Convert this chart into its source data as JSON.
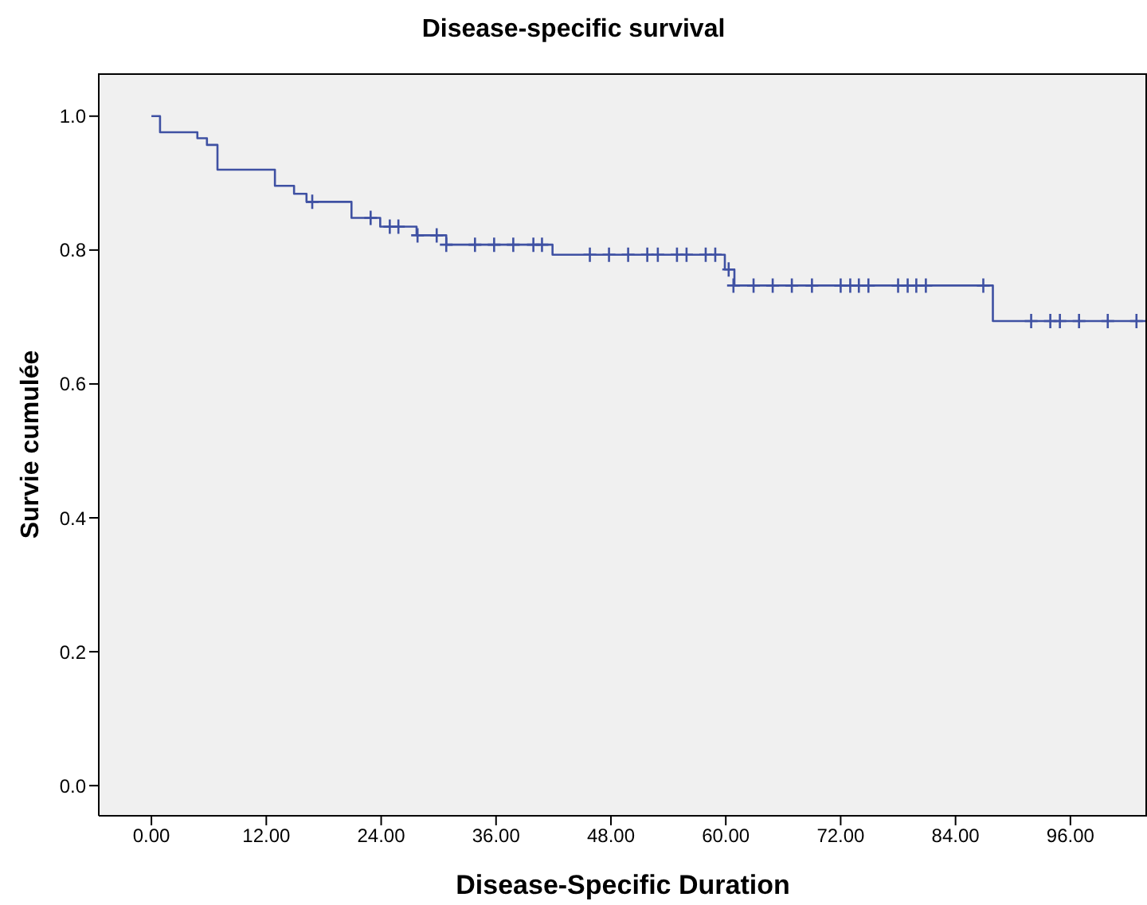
{
  "chart_data": {
    "type": "step",
    "title": "Disease-specific survival",
    "xlabel": "Disease-Specific Duration",
    "ylabel": "Survie cumulée",
    "xlim": [
      -5.5,
      104
    ],
    "ylim": [
      -0.045,
      1.064
    ],
    "xticks": [
      {
        "value": 0,
        "label": "0.00"
      },
      {
        "value": 12,
        "label": "12.00"
      },
      {
        "value": 24,
        "label": "24.00"
      },
      {
        "value": 36,
        "label": "36.00"
      },
      {
        "value": 48,
        "label": "48.00"
      },
      {
        "value": 60,
        "label": "60.00"
      },
      {
        "value": 72,
        "label": "72.00"
      },
      {
        "value": 84,
        "label": "84.00"
      },
      {
        "value": 96,
        "label": "96.00"
      }
    ],
    "yticks": [
      {
        "value": 0,
        "label": "0.0"
      },
      {
        "value": 0.2,
        "label": "0.2"
      },
      {
        "value": 0.4,
        "label": "0.4"
      },
      {
        "value": 0.6,
        "label": "0.6"
      },
      {
        "value": 0.8,
        "label": "0.8"
      },
      {
        "value": 1,
        "label": "1.0"
      }
    ],
    "series": [
      {
        "color": "#3f51a3",
        "x": [
          0,
          0.9,
          4.8,
          5.8,
          6.9,
          12.9,
          14.9,
          16.2,
          20.9,
          23.9,
          27.7,
          30.8,
          41.9,
          59.9,
          60.9,
          87.9,
          104
        ],
        "values": [
          1.0,
          0.976,
          0.967,
          0.957,
          0.92,
          0.896,
          0.884,
          0.872,
          0.848,
          0.835,
          0.822,
          0.808,
          0.793,
          0.771,
          0.747,
          0.694,
          0.694
        ]
      },
      {
        "type": "scatter",
        "marker": "cross",
        "color": "#3f51a3",
        "x": [
          16.8,
          22.9,
          24.9,
          25.8,
          27.8,
          29.8,
          30.8,
          33.8,
          35.8,
          37.8,
          39.9,
          40.8,
          45.8,
          47.8,
          49.8,
          51.8,
          52.9,
          54.9,
          55.9,
          57.9,
          58.9,
          60.3,
          60.8,
          62.9,
          64.9,
          66.9,
          69,
          72,
          73,
          73.9,
          74.9,
          78,
          79,
          79.9,
          80.9,
          86.9,
          91.9,
          93.9,
          94.9,
          96.9,
          99.9,
          102.9
        ],
        "values": [
          0.872,
          0.848,
          0.835,
          0.835,
          0.822,
          0.822,
          0.808,
          0.808,
          0.808,
          0.808,
          0.808,
          0.808,
          0.793,
          0.793,
          0.793,
          0.793,
          0.793,
          0.793,
          0.793,
          0.793,
          0.793,
          0.771,
          0.747,
          0.747,
          0.747,
          0.747,
          0.747,
          0.747,
          0.747,
          0.747,
          0.747,
          0.747,
          0.747,
          0.747,
          0.747,
          0.747,
          0.694,
          0.694,
          0.694,
          0.694,
          0.694,
          0.694
        ]
      }
    ]
  }
}
